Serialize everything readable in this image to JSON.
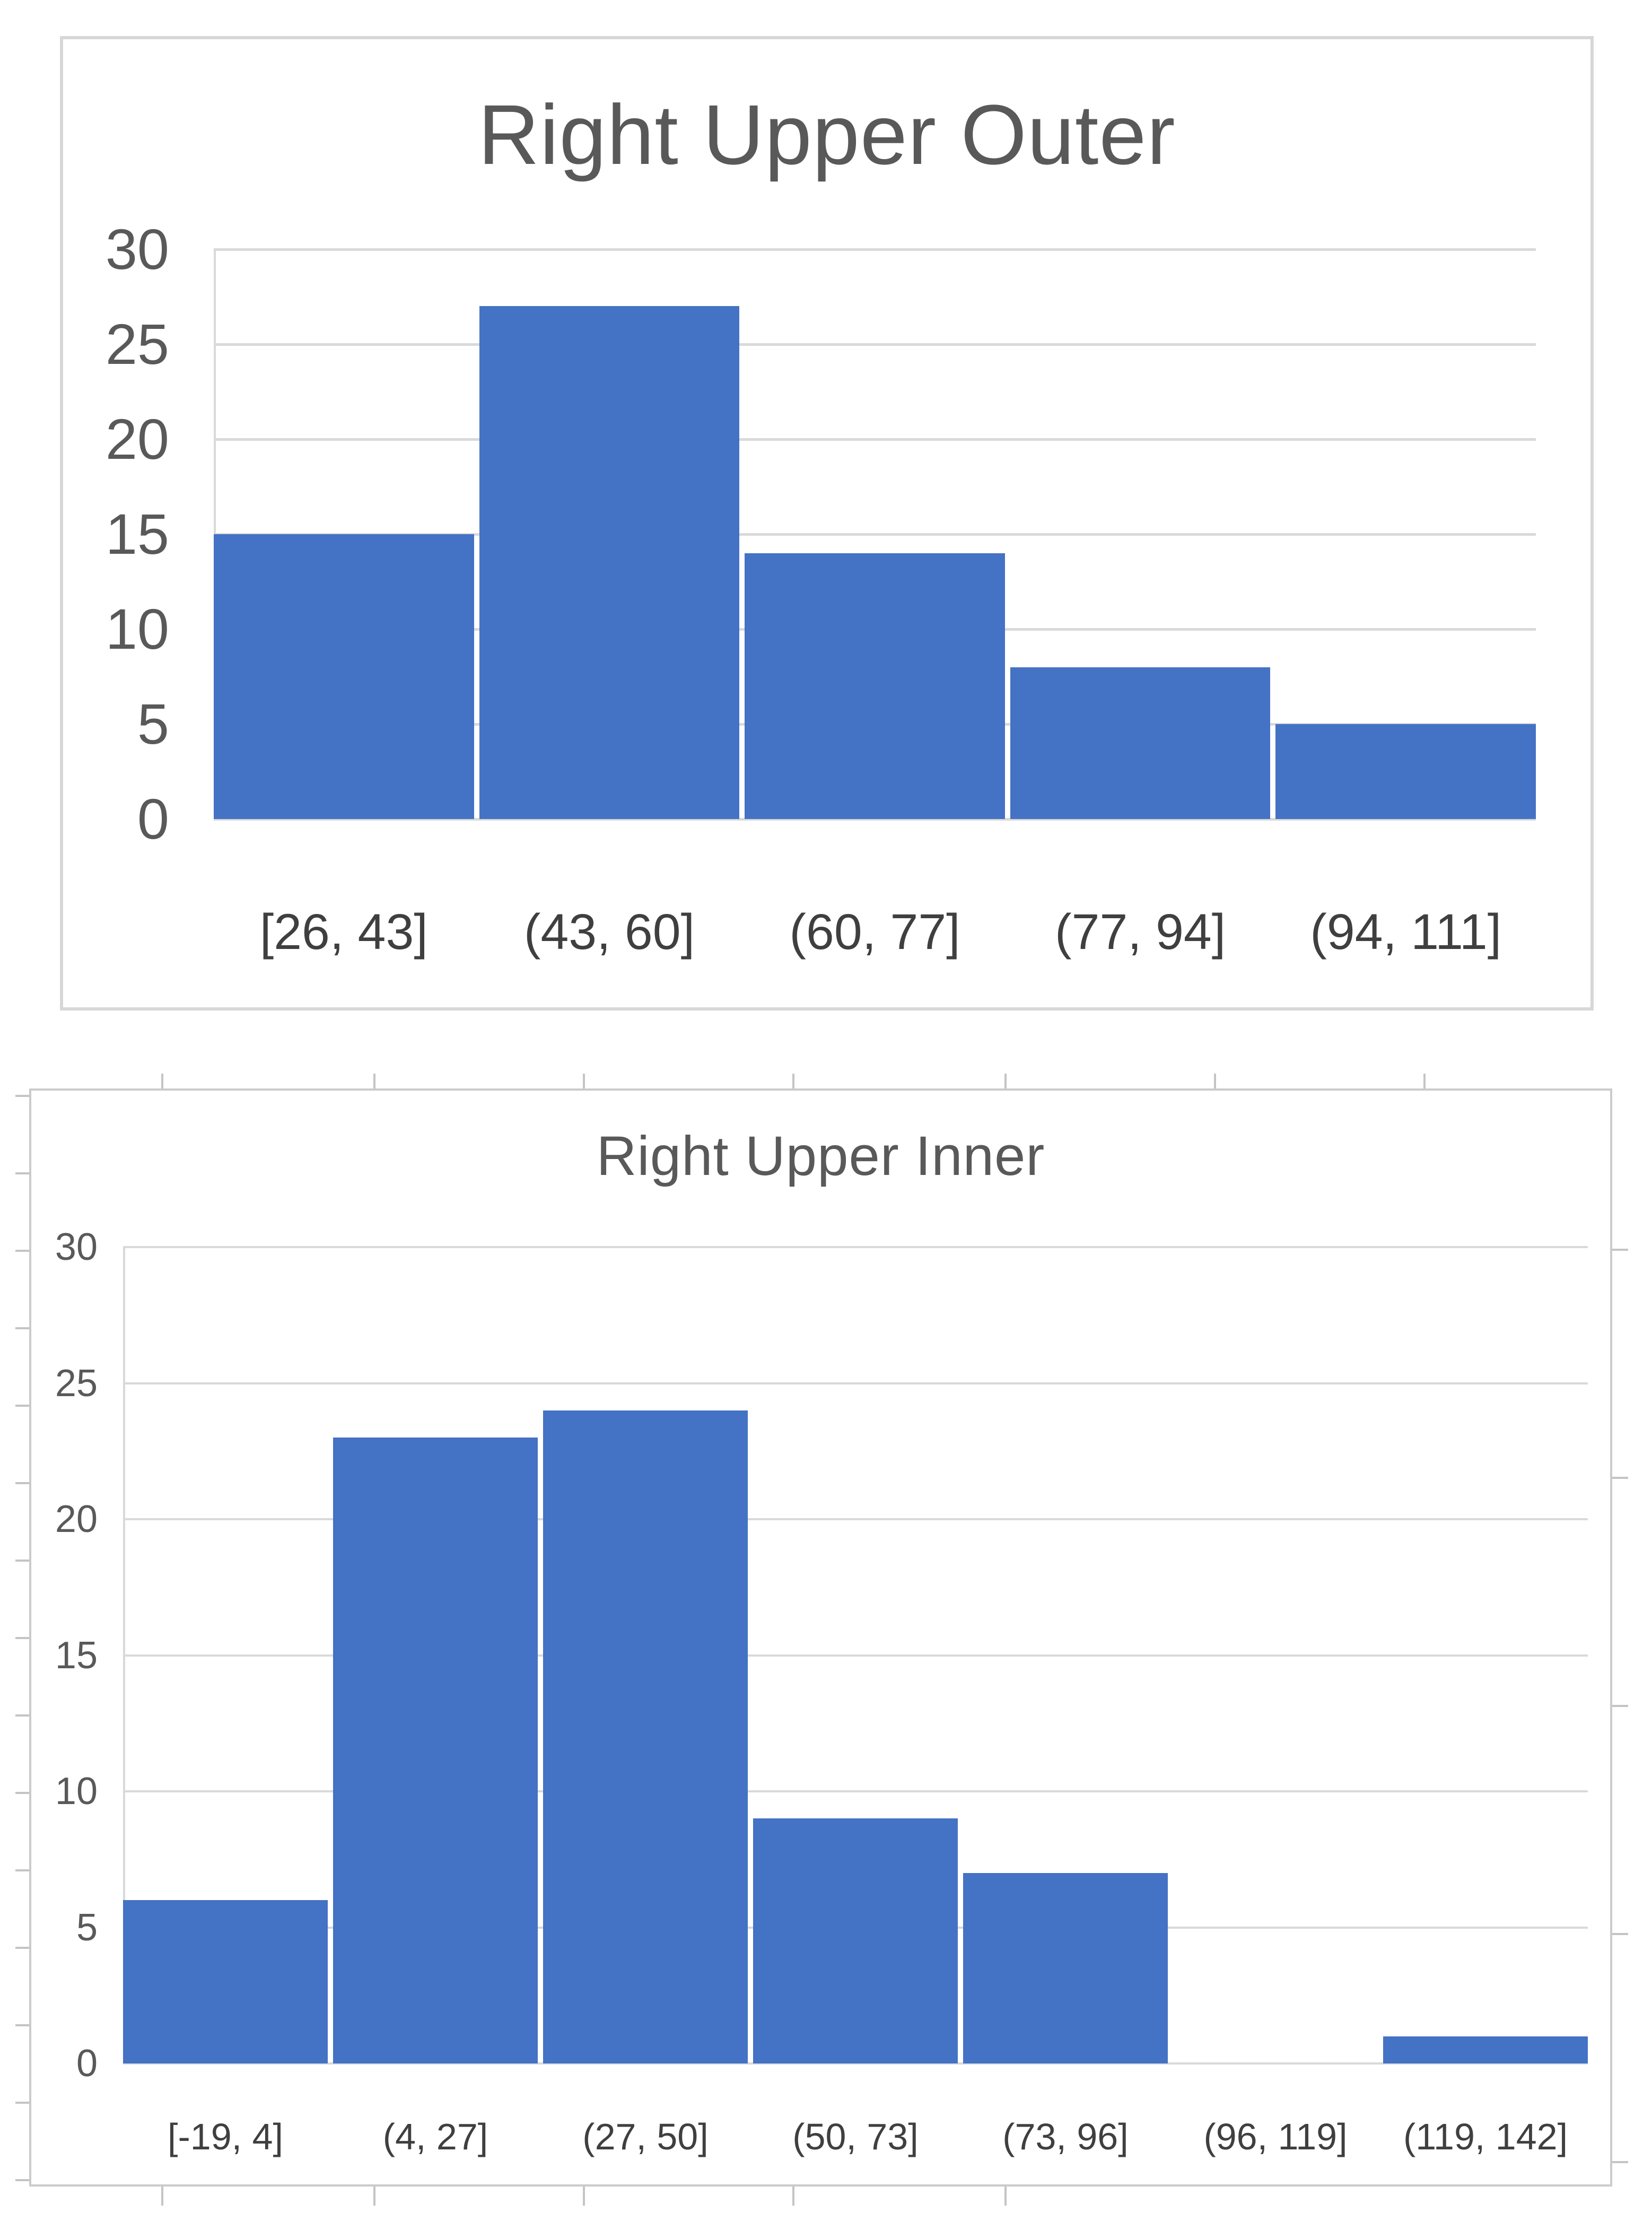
{
  "figure": {
    "description_top": "Right Upper Outer histogram",
    "description_bottom": "Right Upper Inner histogram"
  },
  "colors": {
    "bar": "#4472c4",
    "gridline": "#d9d9d9",
    "panel_border_top_chart": "#d7d7d7",
    "panel_border_bottom_chart": "#cbcbcb",
    "outer_tick": "#c4c4c4",
    "title_text": "#595959",
    "y_label_text": "#595959",
    "x_label_text": "#3f3f3f",
    "background": "#ffffff"
  },
  "chart_data": [
    {
      "type": "bar",
      "title": "Right Upper Outer",
      "categories": [
        "[26, 43]",
        "(43, 60]",
        "(60, 77]",
        "(77, 94]",
        "(94, 111]"
      ],
      "values": [
        15,
        27,
        14,
        8,
        5
      ],
      "xlabel": "",
      "ylabel": "",
      "ylim": [
        0,
        30
      ],
      "yticks": [
        0,
        5,
        10,
        15,
        20,
        25,
        30
      ],
      "grid": true,
      "legend": false,
      "bar_color": "#4472c4",
      "gap_between_bars": "small"
    },
    {
      "type": "bar",
      "title": "Right Upper Inner",
      "categories": [
        "[-19, 4]",
        "(4, 27]",
        "(27, 50]",
        "(50, 73]",
        "(73, 96]",
        "(96, 119]",
        "(119, 142]"
      ],
      "values": [
        6,
        23,
        24,
        9,
        7,
        0,
        1
      ],
      "xlabel": "",
      "ylabel": "",
      "ylim": [
        0,
        30
      ],
      "yticks": [
        0,
        5,
        10,
        15,
        20,
        25,
        30
      ],
      "grid": true,
      "legend": false,
      "bar_color": "#4472c4",
      "gap_between_bars": "small"
    }
  ]
}
